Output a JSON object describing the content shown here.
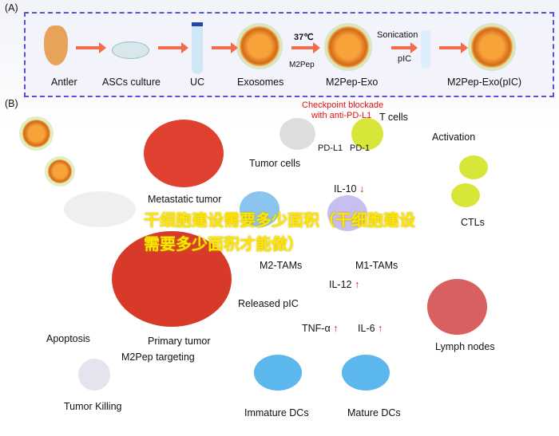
{
  "panel_a": {
    "label": "(A)",
    "steps": [
      "Antler",
      "ASCs culture",
      "UC",
      "Exosomes",
      "M2Pep-Exo",
      "M2Pep-Exo(pIC)"
    ],
    "temp": "37℃",
    "peptide": "M2Pep",
    "sonication": "Sonication",
    "pic": "pIC"
  },
  "panel_b": {
    "label": "(B)",
    "checkpoint": "Checkpoint blockade",
    "anti": "with anti-PD-L1",
    "t_cells": "T cells",
    "pdl1": "PD-L1",
    "pd1": "PD-1",
    "activation": "Activation",
    "tumor_cells": "Tumor cells",
    "metastatic": "Metastatic tumor",
    "il10": "IL-10",
    "m2": "M2-TAMs",
    "m1": "M1-TAMs",
    "ctls": "CTLs",
    "il12": "IL-12",
    "released": "Released pIC",
    "primary": "Primary tumor",
    "apoptosis": "Apoptosis",
    "targeting": "M2Pep targeting",
    "tnf": "TNF-α",
    "il6": "IL-6",
    "lymph": "Lymph nodes",
    "killing": "Tumor Killing",
    "immature": "Immature DCs",
    "mature": "Mature DCs",
    "down": "↓",
    "up": "↑"
  },
  "watermark": "干细胞建设需要多少面积（干细胞建设需要多少面积才能做）"
}
